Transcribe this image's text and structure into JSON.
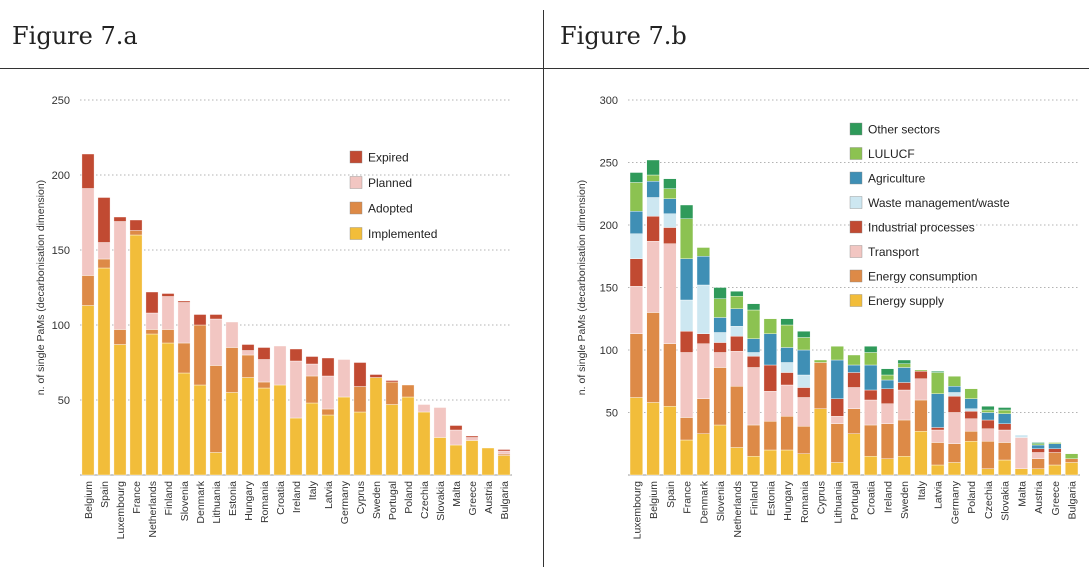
{
  "figures": {
    "a": {
      "title": "Figure 7.a"
    },
    "b": {
      "title": "Figure 7.b"
    }
  },
  "chart_data": [
    {
      "type": "bar",
      "stacked": true,
      "ylabel": "n. of single PaMs (decarbonisation dimension)",
      "ylim": [
        0,
        250
      ],
      "yticks": [
        50,
        100,
        150,
        200,
        250
      ],
      "grid": true,
      "legend_position": "top-right",
      "categories": [
        "Belgium",
        "Spain",
        "Luxembourg",
        "France",
        "Netherlands",
        "Finland",
        "Slovenia",
        "Denmark",
        "Lithuania",
        "Estonia",
        "Hungary",
        "Romania",
        "Croatia",
        "Ireland",
        "Italy",
        "Latvia",
        "Germany",
        "Cyprus",
        "Sweden",
        "Portugal",
        "Poland",
        "Czechia",
        "Slovakia",
        "Malta",
        "Greece",
        "Austria",
        "Bulgaria"
      ],
      "series": [
        {
          "name": "Implemented",
          "color": "#f2bd3a",
          "values": [
            113,
            138,
            87,
            160,
            94,
            88,
            68,
            60,
            15,
            55,
            65,
            58,
            60,
            38,
            48,
            40,
            52,
            42,
            65,
            47,
            52,
            42,
            25,
            20,
            23,
            18,
            13
          ]
        },
        {
          "name": "Adopted",
          "color": "#dd8a47",
          "values": [
            20,
            6,
            10,
            3,
            3,
            9,
            20,
            40,
            58,
            30,
            15,
            4,
            0,
            0,
            18,
            4,
            0,
            17,
            0,
            15,
            8,
            0,
            0,
            0,
            0,
            0,
            1
          ]
        },
        {
          "name": "Planned",
          "color": "#f2c6c2",
          "values": [
            58,
            11,
            72,
            0,
            11,
            22,
            27,
            0,
            31,
            17,
            3,
            15,
            26,
            38,
            8,
            22,
            25,
            0,
            0,
            0,
            0,
            5,
            20,
            10,
            2,
            0,
            2
          ]
        },
        {
          "name": "Expired",
          "color": "#c14a32",
          "values": [
            23,
            30,
            3,
            7,
            14,
            2,
            1,
            7,
            3,
            0,
            4,
            8,
            0,
            8,
            5,
            12,
            0,
            16,
            2,
            1,
            0,
            0,
            0,
            3,
            1,
            0,
            1
          ]
        }
      ]
    },
    {
      "type": "bar",
      "stacked": true,
      "ylabel": "n. of single PaMs (decarbonisation dimension)",
      "ylim": [
        0,
        300
      ],
      "yticks": [
        50,
        100,
        150,
        200,
        250,
        300
      ],
      "grid": true,
      "legend_position": "top-right",
      "categories": [
        "Luxembourg",
        "Belgium",
        "Spain",
        "France",
        "Denmark",
        "Slovenia",
        "Netherlands",
        "Finland",
        "Estonia",
        "Hungary",
        "Romania",
        "Cyprus",
        "Lithuania",
        "Portugal",
        "Croatia",
        "Ireland",
        "Sweden",
        "Italy",
        "Latvia",
        "Germany",
        "Poland",
        "Czechia",
        "Slovakia",
        "Malta",
        "Austria",
        "Greece",
        "Bulgaria"
      ],
      "series": [
        {
          "name": "Energy supply",
          "color": "#f2bd3a",
          "values": [
            62,
            58,
            55,
            28,
            33,
            40,
            22,
            15,
            20,
            20,
            17,
            53,
            10,
            33,
            15,
            13,
            15,
            35,
            8,
            10,
            27,
            5,
            12,
            5,
            5,
            8,
            10
          ]
        },
        {
          "name": "Energy consumption",
          "color": "#dd8a47",
          "values": [
            51,
            72,
            50,
            18,
            28,
            46,
            49,
            25,
            23,
            27,
            22,
            37,
            31,
            20,
            25,
            28,
            29,
            25,
            18,
            15,
            8,
            22,
            14,
            0,
            8,
            10,
            3
          ]
        },
        {
          "name": "Transport",
          "color": "#f2c6c2",
          "values": [
            38,
            57,
            80,
            52,
            44,
            12,
            28,
            46,
            24,
            25,
            23,
            0,
            6,
            17,
            20,
            16,
            24,
            17,
            10,
            25,
            10,
            10,
            10,
            25,
            5,
            0,
            0
          ]
        },
        {
          "name": "Industrial processes",
          "color": "#c14a32",
          "values": [
            22,
            20,
            13,
            17,
            8,
            8,
            12,
            9,
            21,
            10,
            8,
            0,
            14,
            12,
            8,
            12,
            6,
            6,
            2,
            13,
            6,
            7,
            5,
            0,
            3,
            3,
            0
          ]
        },
        {
          "name": "Waste management/waste",
          "color": "#cde7f1",
          "values": [
            20,
            15,
            11,
            25,
            39,
            8,
            8,
            3,
            0,
            8,
            10,
            0,
            0,
            0,
            0,
            0,
            0,
            0,
            0,
            3,
            2,
            0,
            0,
            2,
            0,
            0,
            0
          ]
        },
        {
          "name": "Agriculture",
          "color": "#3f8fb5",
          "values": [
            18,
            13,
            12,
            33,
            23,
            12,
            14,
            11,
            25,
            12,
            20,
            0,
            31,
            6,
            20,
            7,
            12,
            0,
            27,
            5,
            8,
            6,
            8,
            0,
            3,
            4,
            0
          ]
        },
        {
          "name": "LULUCF",
          "color": "#8cc251",
          "values": [
            23,
            5,
            8,
            32,
            7,
            15,
            10,
            23,
            12,
            18,
            10,
            2,
            11,
            8,
            10,
            4,
            3,
            1,
            17,
            8,
            8,
            2,
            3,
            0,
            1,
            1,
            4
          ]
        },
        {
          "name": "Other sectors",
          "color": "#2f9a5a",
          "values": [
            8,
            12,
            8,
            11,
            0,
            9,
            4,
            5,
            0,
            5,
            5,
            0,
            0,
            0,
            5,
            5,
            3,
            0,
            1,
            0,
            0,
            3,
            2,
            0,
            1,
            0,
            0
          ]
        }
      ]
    }
  ]
}
